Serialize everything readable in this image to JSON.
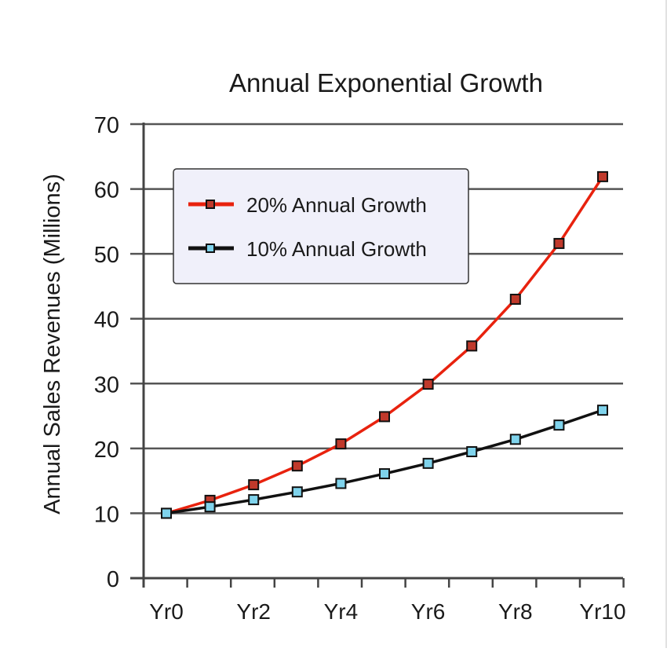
{
  "chart_data": {
    "type": "line",
    "title": "Annual Exponential Growth",
    "xlabel": "",
    "ylabel": "Annual Sales Revenues (Millions)",
    "x": [
      0,
      1,
      2,
      3,
      4,
      5,
      6,
      7,
      8,
      9,
      10
    ],
    "xtick_labels": [
      {
        "x": 0,
        "label": "Yr0"
      },
      {
        "x": 2,
        "label": "Yr2"
      },
      {
        "x": 4,
        "label": "Yr4"
      },
      {
        "x": 6,
        "label": "Yr6"
      },
      {
        "x": 8,
        "label": "Yr8"
      },
      {
        "x": 10,
        "label": "Yr10"
      }
    ],
    "ylim": [
      0,
      70
    ],
    "yticks": [
      0,
      10,
      20,
      30,
      40,
      50,
      60,
      70
    ],
    "grid": "horizontal",
    "legend_position": "top-left",
    "series": [
      {
        "name": "20% Annual Growth",
        "color": "#e8220e",
        "marker_color": "#c0392b",
        "values": [
          10,
          12,
          14.4,
          17.3,
          20.7,
          24.9,
          29.9,
          35.8,
          43.0,
          51.6,
          61.9
        ]
      },
      {
        "name": "10% Annual Growth",
        "color": "#111111",
        "marker_color": "#7fd3ec",
        "values": [
          10,
          11,
          12.1,
          13.3,
          14.6,
          16.1,
          17.7,
          19.5,
          21.4,
          23.6,
          25.9
        ]
      }
    ]
  }
}
